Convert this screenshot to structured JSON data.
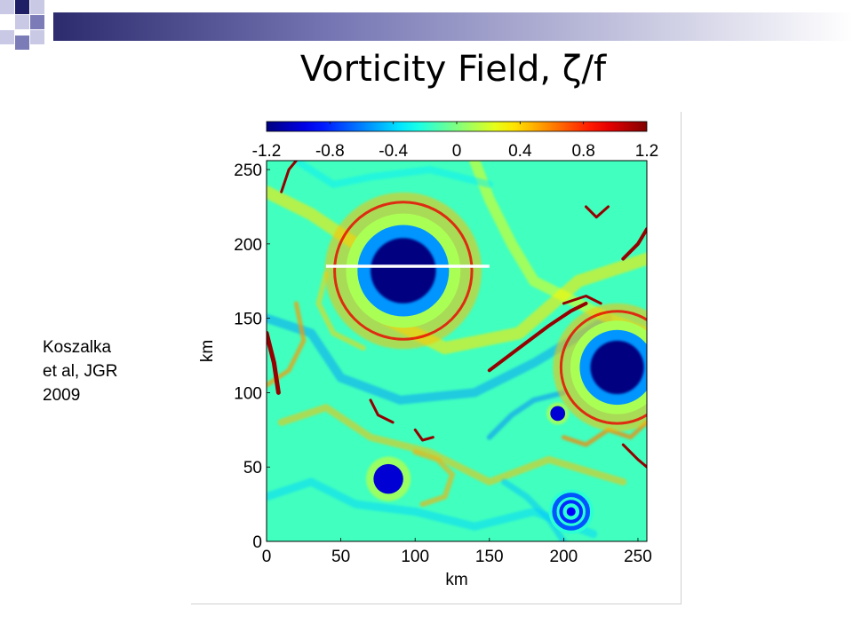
{
  "slide": {
    "title": "Vorticity Field, ζ/f",
    "citation_lines": [
      "Koszalka",
      "et al, JGR",
      "2009"
    ],
    "template_colors": [
      "#1f1f66",
      "#7b7bb8",
      "#c9c9e6"
    ]
  },
  "chart_data": {
    "type": "heatmap",
    "title": "",
    "xlabel": "km",
    "ylabel": "km",
    "xlim": [
      0,
      256
    ],
    "ylim": [
      0,
      256
    ],
    "x_ticks": [
      "0",
      "50",
      "100",
      "150",
      "200",
      "250"
    ],
    "x_tick_values": [
      0,
      50,
      100,
      150,
      200,
      250
    ],
    "y_ticks": [
      "0",
      "50",
      "100",
      "150",
      "200",
      "250"
    ],
    "y_tick_values": [
      0,
      50,
      100,
      150,
      200,
      250
    ],
    "colorbar": {
      "range": [
        -1.2,
        1.2
      ],
      "tick_labels": [
        "-1.2",
        "-0.8",
        "-0.4",
        "0",
        "0.4",
        "0.8",
        "1.2"
      ],
      "tick_values": [
        -1.2,
        -0.8,
        -0.4,
        0,
        0.4,
        0.8,
        1.2
      ],
      "colormap": "jet",
      "placement": "top"
    },
    "grid": false,
    "features": [
      {
        "kind": "anticyclonic eddy core",
        "x": 92,
        "y": 182,
        "radius_km": 22,
        "value": -1.2
      },
      {
        "kind": "anticyclonic eddy core",
        "x": 236,
        "y": 117,
        "radius_km": 18,
        "value": -1.2
      },
      {
        "kind": "cyclonic eddy",
        "x": 82,
        "y": 42,
        "radius_km": 10,
        "value": -1.0
      },
      {
        "kind": "small vortex",
        "x": 196,
        "y": 86,
        "radius_km": 5,
        "value": -1.0
      },
      {
        "kind": "swirl eddy",
        "x": 205,
        "y": 20,
        "radius_km": 15,
        "value": -0.7
      }
    ],
    "transect": {
      "x": [
        40,
        150
      ],
      "y": [
        185,
        185
      ],
      "color": "#ffffff"
    }
  }
}
